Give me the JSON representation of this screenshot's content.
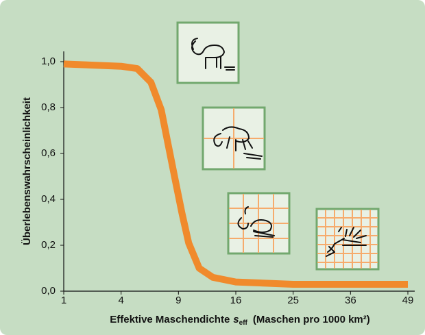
{
  "chart_data": {
    "type": "line",
    "xlabel": {
      "text": "Effektive Maschendichte",
      "symbol": "s",
      "subscript": "eff",
      "unit": "(Maschen pro 1000 km²)"
    },
    "ylabel": "Überlebenswahrscheinlichkeit",
    "x": [
      1,
      4,
      5.2,
      6.35,
      7.29,
      7.95,
      8.64,
      9.37,
      10.1,
      11.3,
      12.96,
      16,
      25,
      49
    ],
    "values": [
      0.99,
      0.98,
      0.97,
      0.91,
      0.79,
      0.64,
      0.49,
      0.34,
      0.21,
      0.1,
      0.06,
      0.04,
      0.03,
      0.03
    ],
    "color": "#f08a2c",
    "xscale": "sqrt",
    "xlim": [
      1,
      49
    ],
    "xticks": [
      1,
      4,
      9,
      16,
      25,
      36,
      49
    ],
    "ylim": [
      0,
      1
    ],
    "yticks": [
      {
        "value": 0,
        "label": "0,0"
      },
      {
        "value": 0.2,
        "label": "0,2"
      },
      {
        "value": 0.4,
        "label": "0,4"
      },
      {
        "value": 0.6,
        "label": "0,6"
      },
      {
        "value": 0.8,
        "label": "0,8"
      },
      {
        "value": 1,
        "label": "1,0"
      }
    ]
  }
}
